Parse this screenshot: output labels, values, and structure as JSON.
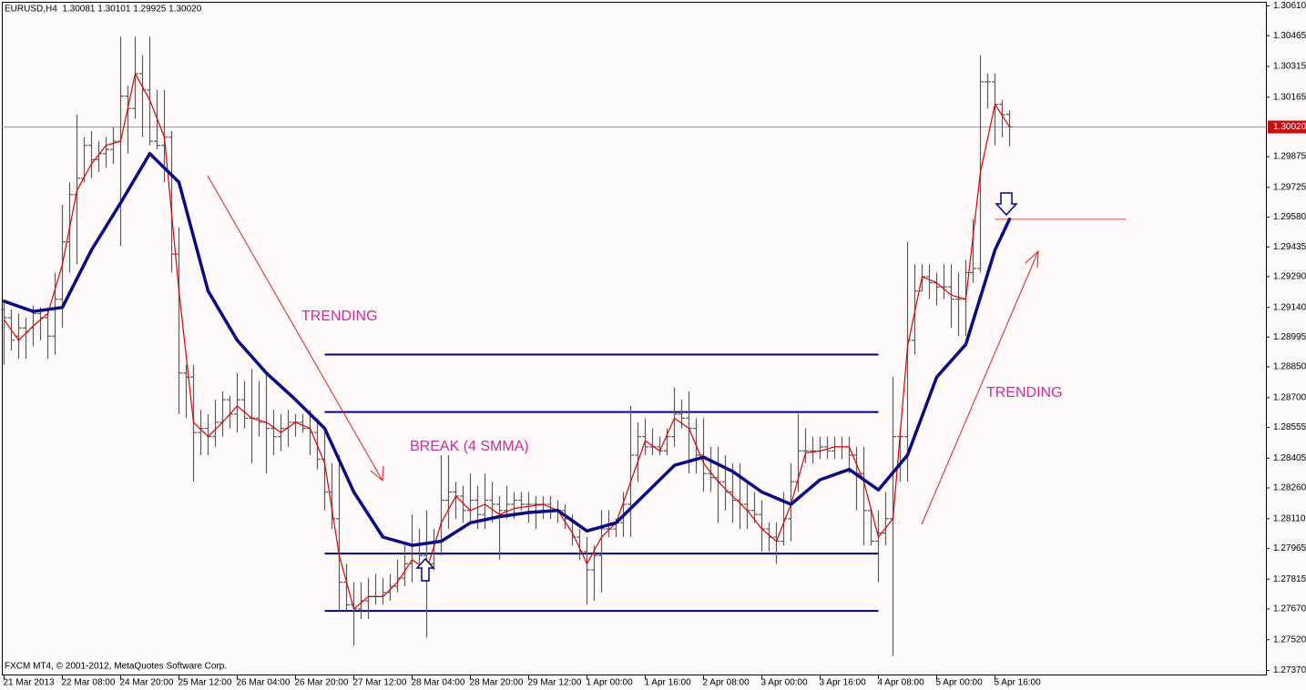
{
  "footer": "FXCM MT4, © 2001-2012, MetaQuotes Software Corp.",
  "chart_data": {
    "type": "ohlc",
    "title": "EURUSD,H4  1.30081 1.30101 1.29925 1.30020",
    "categories": [
      "21 Mar 2013",
      null,
      null,
      null,
      null,
      null,
      null,
      null,
      "22 Mar 08:00",
      null,
      null,
      null,
      null,
      null,
      null,
      null,
      "24 Mar 20:00",
      null,
      null,
      null,
      null,
      null,
      null,
      null,
      "25 Mar 12:00",
      null,
      null,
      null,
      null,
      null,
      null,
      null,
      "26 Mar 04:00",
      null,
      null,
      null,
      null,
      null,
      null,
      null,
      "26 Mar 20:00",
      null,
      null,
      null,
      null,
      null,
      null,
      null,
      "27 Mar 12:00",
      null,
      null,
      null,
      null,
      null,
      null,
      null,
      "28 Mar 04:00",
      null,
      null,
      null,
      null,
      null,
      null,
      null,
      "28 Mar 20:00",
      null,
      null,
      null,
      null,
      null,
      null,
      null,
      "29 Mar 12:00",
      null,
      null,
      null,
      null,
      null,
      null,
      null,
      "1 Apr 00:00",
      null,
      null,
      null,
      null,
      null,
      null,
      null,
      "1 Apr 16:00",
      null,
      null,
      null,
      null,
      null,
      null,
      null,
      "2 Apr 08:00",
      null,
      null,
      null,
      null,
      null,
      null,
      null,
      "3 Apr 00:00",
      null,
      null,
      null,
      null,
      null,
      null,
      null,
      "3 Apr 16:00",
      null,
      null,
      null,
      null,
      null,
      null,
      null,
      "4 Apr 08:00",
      null,
      null,
      null,
      null,
      null,
      null,
      null,
      "5 Apr 00:00",
      null,
      null,
      null,
      null,
      null,
      null,
      null,
      "5 Apr 16:00",
      null,
      null
    ],
    "ohlc": [
      [
        1.2913,
        1.2918,
        1.2886,
        1.2909
      ],
      [
        1.2909,
        1.2913,
        1.2893,
        1.2898
      ],
      [
        1.29,
        1.2911,
        1.2889,
        1.2904
      ],
      [
        1.2904,
        1.2909,
        1.2889,
        1.2902
      ],
      [
        1.2904,
        1.2915,
        1.2895,
        1.2911
      ],
      [
        1.2911,
        1.2914,
        1.2898,
        1.2909
      ],
      [
        1.2909,
        1.2913,
        1.2889,
        1.29
      ],
      [
        1.29,
        1.2931,
        1.2891,
        1.2918
      ],
      [
        1.2918,
        1.2964,
        1.2904,
        1.2946
      ],
      [
        1.2946,
        1.2975,
        1.2931,
        1.2969
      ],
      [
        1.2969,
        1.3008,
        1.2935,
        1.2977
      ],
      [
        1.2977,
        1.2997,
        1.2975,
        1.2993
      ],
      [
        1.2993,
        1.3,
        1.2977,
        1.2986
      ],
      [
        1.2986,
        1.2995,
        1.298,
        1.2989
      ],
      [
        1.2989,
        1.2997,
        1.2982,
        1.2991
      ],
      [
        1.2991,
        1.3002,
        1.2984,
        1.2995
      ],
      [
        1.2995,
        1.3046,
        1.2944,
        1.3017
      ],
      [
        1.3017,
        1.3022,
        1.2989,
        1.3011
      ],
      [
        1.3011,
        1.3046,
        1.3006,
        1.3028
      ],
      [
        1.3028,
        1.3037,
        1.2997,
        1.302
      ],
      [
        1.302,
        1.3046,
        1.2993,
        1.2995
      ],
      [
        1.2995,
        1.302,
        1.2991,
        1.2993
      ],
      [
        1.2993,
        1.302,
        1.2975,
        1.2997
      ],
      [
        1.2997,
        1.3,
        1.2931,
        1.294
      ],
      [
        1.294,
        1.2953,
        1.2862,
        1.2882
      ],
      [
        1.2882,
        1.2886,
        1.286,
        1.288
      ],
      [
        1.288,
        1.2886,
        1.2829,
        1.2853
      ],
      [
        1.2853,
        1.2864,
        1.2842,
        1.2855
      ],
      [
        1.2855,
        1.2862,
        1.2842,
        1.2851
      ],
      [
        1.2851,
        1.2869,
        1.2846,
        1.2858
      ],
      [
        1.2858,
        1.2873,
        1.2851,
        1.2869
      ],
      [
        1.2869,
        1.2871,
        1.2855,
        1.2862
      ],
      [
        1.2862,
        1.2882,
        1.2853,
        1.2869
      ],
      [
        1.2869,
        1.2878,
        1.2855,
        1.286
      ],
      [
        1.286,
        1.2884,
        1.2838,
        1.286
      ],
      [
        1.286,
        1.2878,
        1.2851,
        1.2858
      ],
      [
        1.2858,
        1.2882,
        1.2833,
        1.2855
      ],
      [
        1.2855,
        1.2864,
        1.2842,
        1.2851
      ],
      [
        1.2851,
        1.2862,
        1.2844,
        1.2855
      ],
      [
        1.2855,
        1.2864,
        1.2846,
        1.2858
      ],
      [
        1.2858,
        1.2862,
        1.2851,
        1.2858
      ],
      [
        1.2858,
        1.2862,
        1.2853,
        1.2855
      ],
      [
        1.2855,
        1.2864,
        1.2842,
        1.2853
      ],
      [
        1.2853,
        1.286,
        1.2835,
        1.284
      ],
      [
        1.284,
        1.2855,
        1.2815,
        1.2824
      ],
      [
        1.2824,
        1.2838,
        1.2806,
        1.2811
      ],
      [
        1.2811,
        1.2842,
        1.2766,
        1.278
      ],
      [
        1.278,
        1.2789,
        1.2766,
        1.2769
      ],
      [
        1.2769,
        1.278,
        1.2749,
        1.2767
      ],
      [
        1.2767,
        1.278,
        1.2762,
        1.2771
      ],
      [
        1.2771,
        1.2782,
        1.2762,
        1.2773
      ],
      [
        1.2773,
        1.2784,
        1.2769,
        1.2773
      ],
      [
        1.2773,
        1.2782,
        1.2769,
        1.2775
      ],
      [
        1.2775,
        1.2784,
        1.2771,
        1.2778
      ],
      [
        1.2778,
        1.2791,
        1.2775,
        1.2782
      ],
      [
        1.2782,
        1.2798,
        1.2778,
        1.2789
      ],
      [
        1.2789,
        1.2813,
        1.278,
        1.2798
      ],
      [
        1.2798,
        1.2806,
        1.2789,
        1.2793
      ],
      [
        1.2793,
        1.2815,
        1.2753,
        1.2789
      ],
      [
        1.2789,
        1.2806,
        1.2786,
        1.28
      ],
      [
        1.28,
        1.2842,
        1.2793,
        1.282
      ],
      [
        1.282,
        1.2842,
        1.2806,
        1.2824
      ],
      [
        1.2824,
        1.2829,
        1.2811,
        1.2822
      ],
      [
        1.2822,
        1.2827,
        1.2809,
        1.2815
      ],
      [
        1.2815,
        1.2833,
        1.2809,
        1.282
      ],
      [
        1.282,
        1.2827,
        1.2806,
        1.2813
      ],
      [
        1.2813,
        1.2833,
        1.2806,
        1.282
      ],
      [
        1.282,
        1.2829,
        1.2809,
        1.2818
      ],
      [
        1.2818,
        1.2822,
        1.2791,
        1.2815
      ],
      [
        1.2815,
        1.2827,
        1.2811,
        1.2818
      ],
      [
        1.2818,
        1.2824,
        1.2811,
        1.282
      ],
      [
        1.282,
        1.2824,
        1.2815,
        1.2818
      ],
      [
        1.2818,
        1.2824,
        1.2809,
        1.2818
      ],
      [
        1.2818,
        1.2822,
        1.2806,
        1.2818
      ],
      [
        1.2818,
        1.2822,
        1.2811,
        1.2818
      ],
      [
        1.2818,
        1.2822,
        1.2811,
        1.2815
      ],
      [
        1.2815,
        1.282,
        1.2809,
        1.2815
      ],
      [
        1.2815,
        1.2818,
        1.2806,
        1.2811
      ],
      [
        1.2811,
        1.2813,
        1.2798,
        1.2802
      ],
      [
        1.2802,
        1.2806,
        1.2791,
        1.2795
      ],
      [
        1.2795,
        1.2802,
        1.2769,
        1.2786
      ],
      [
        1.2786,
        1.2798,
        1.2771,
        1.2793
      ],
      [
        1.2793,
        1.2815,
        1.2775,
        1.2806
      ],
      [
        1.2806,
        1.2815,
        1.2802,
        1.2806
      ],
      [
        1.2806,
        1.2811,
        1.2802,
        1.2809
      ],
      [
        1.2809,
        1.2824,
        1.2802,
        1.2818
      ],
      [
        1.2818,
        1.2866,
        1.2802,
        1.2842
      ],
      [
        1.2842,
        1.2858,
        1.2829,
        1.2851
      ],
      [
        1.2851,
        1.286,
        1.2842,
        1.2846
      ],
      [
        1.2846,
        1.2855,
        1.2842,
        1.2846
      ],
      [
        1.2846,
        1.2851,
        1.2842,
        1.2844
      ],
      [
        1.2844,
        1.2855,
        1.2842,
        1.2851
      ],
      [
        1.2851,
        1.2875,
        1.2846,
        1.2862
      ],
      [
        1.2862,
        1.2869,
        1.2855,
        1.286
      ],
      [
        1.286,
        1.2873,
        1.2833,
        1.2855
      ],
      [
        1.2855,
        1.286,
        1.2833,
        1.2842
      ],
      [
        1.2842,
        1.286,
        1.2824,
        1.2833
      ],
      [
        1.2833,
        1.2846,
        1.2824,
        1.2831
      ],
      [
        1.2831,
        1.2846,
        1.2809,
        1.2829
      ],
      [
        1.2829,
        1.2842,
        1.2815,
        1.2824
      ],
      [
        1.2824,
        1.2838,
        1.2809,
        1.282
      ],
      [
        1.282,
        1.2838,
        1.2806,
        1.2818
      ],
      [
        1.2818,
        1.2829,
        1.2806,
        1.2815
      ],
      [
        1.2815,
        1.2824,
        1.2809,
        1.2813
      ],
      [
        1.2813,
        1.282,
        1.2795,
        1.2806
      ],
      [
        1.2806,
        1.2809,
        1.2795,
        1.2802
      ],
      [
        1.2802,
        1.2809,
        1.2789,
        1.28
      ],
      [
        1.28,
        1.2824,
        1.2798,
        1.2811
      ],
      [
        1.2811,
        1.2838,
        1.28,
        1.2829
      ],
      [
        1.2829,
        1.2862,
        1.2824,
        1.2844
      ],
      [
        1.2844,
        1.2855,
        1.2838,
        1.2844
      ],
      [
        1.2844,
        1.2851,
        1.2838,
        1.2844
      ],
      [
        1.2844,
        1.2851,
        1.284,
        1.2846
      ],
      [
        1.2846,
        1.2851,
        1.284,
        1.2844
      ],
      [
        1.2844,
        1.2851,
        1.284,
        1.2846
      ],
      [
        1.2846,
        1.2851,
        1.284,
        1.2846
      ],
      [
        1.2846,
        1.2851,
        1.2833,
        1.2842
      ],
      [
        1.2842,
        1.2846,
        1.2815,
        1.2833
      ],
      [
        1.2833,
        1.2846,
        1.2798,
        1.2815
      ],
      [
        1.2815,
        1.2815,
        1.2798,
        1.28
      ],
      [
        1.28,
        1.2815,
        1.278,
        1.2804
      ],
      [
        1.2804,
        1.2824,
        1.2798,
        1.2811
      ],
      [
        1.2811,
        1.288,
        1.2744,
        1.2851
      ],
      [
        1.2851,
        1.2855,
        1.2829,
        1.2851
      ],
      [
        1.2851,
        1.2946,
        1.2829,
        1.2898
      ],
      [
        1.2898,
        1.2935,
        1.2891,
        1.2922
      ],
      [
        1.2922,
        1.2935,
        1.2922,
        1.2929
      ],
      [
        1.2929,
        1.2935,
        1.2918,
        1.2926
      ],
      [
        1.2926,
        1.2931,
        1.2915,
        1.2924
      ],
      [
        1.2924,
        1.2935,
        1.2918,
        1.2924
      ],
      [
        1.2924,
        1.2935,
        1.2904,
        1.2918
      ],
      [
        1.2918,
        1.2931,
        1.29,
        1.2918
      ],
      [
        1.2918,
        1.2937,
        1.29,
        1.2931
      ],
      [
        1.2931,
        1.2957,
        1.2926,
        1.2933
      ],
      [
        1.2933,
        1.3037,
        1.2931,
        1.3024
      ],
      [
        1.3024,
        1.3028,
        1.3011,
        1.3024
      ],
      [
        1.3024,
        1.3028,
        1.2993,
        1.3013
      ],
      [
        1.3013,
        1.3015,
        1.2997,
        1.3008
      ],
      [
        1.30081,
        1.30101,
        1.29925,
        1.3002
      ]
    ],
    "bar_color": "#5c5c5c",
    "lines": [
      {
        "color": "#e00000",
        "x": [
          0,
          2,
          4,
          6,
          8,
          10,
          12,
          14,
          16,
          18,
          20,
          22,
          24,
          26,
          28,
          30,
          32,
          34,
          36,
          38,
          40,
          42,
          44,
          46,
          48,
          50,
          52,
          54,
          56,
          58,
          60,
          62,
          64,
          66,
          68,
          70,
          72,
          74,
          76,
          78,
          80,
          82,
          84,
          86,
          88,
          90,
          92,
          94,
          96,
          98,
          100,
          102,
          104,
          106,
          108,
          110,
          112,
          114,
          116,
          118,
          120,
          122,
          124,
          126,
          128,
          130,
          132,
          134,
          136,
          138
        ],
        "values": [
          1.2908,
          1.2898,
          1.2905,
          1.2911,
          1.2935,
          1.2971,
          1.2984,
          1.2993,
          1.2995,
          1.3028,
          1.3015,
          1.2997,
          1.2922,
          1.2858,
          1.2851,
          1.2858,
          1.2866,
          1.286,
          1.2858,
          1.2853,
          1.2858,
          1.2855,
          1.2838,
          1.2793,
          1.2767,
          1.2773,
          1.2773,
          1.278,
          1.2791,
          1.2786,
          1.2809,
          1.2822,
          1.2815,
          1.2818,
          1.2813,
          1.2816,
          1.2817,
          1.2818,
          1.2815,
          1.2804,
          1.2789,
          1.2802,
          1.2809,
          1.2829,
          1.2849,
          1.2844,
          1.286,
          1.2855,
          1.2838,
          1.2829,
          1.2822,
          1.2815,
          1.2806,
          1.28,
          1.2818,
          1.2843,
          1.2844,
          1.2846,
          1.2846,
          1.2829,
          1.2802,
          1.2811,
          1.2895,
          1.2929,
          1.2926,
          1.292,
          1.2918,
          1.298,
          1.3013,
          1.3002
        ]
      },
      {
        "color": "#0a0a82",
        "x": [
          0,
          4,
          8,
          12,
          16,
          20,
          24,
          28,
          32,
          36,
          40,
          44,
          48,
          52,
          56,
          60,
          64,
          68,
          72,
          76,
          80,
          84,
          88,
          92,
          96,
          100,
          104,
          108,
          112,
          116,
          120,
          124,
          128,
          132,
          136,
          138
        ],
        "values": [
          1.2917,
          1.2912,
          1.2914,
          1.2942,
          1.2965,
          1.2989,
          1.2975,
          1.2922,
          1.2898,
          1.2882,
          1.2869,
          1.2855,
          1.2824,
          1.2802,
          1.2798,
          1.28,
          1.2809,
          1.2812,
          1.2814,
          1.2815,
          1.2805,
          1.2809,
          1.2823,
          1.2837,
          1.2841,
          1.2834,
          1.2824,
          1.2818,
          1.283,
          1.2835,
          1.2825,
          1.2842,
          1.288,
          1.2896,
          1.2942,
          1.2957
        ]
      }
    ],
    "levels": [
      {
        "value": 1.2891,
        "from": 44,
        "to": 120,
        "color": "#00007f"
      },
      {
        "value": 1.2863,
        "from": 44,
        "to": 120,
        "color": "#00007f"
      },
      {
        "value": 1.2794,
        "from": 44,
        "to": 120,
        "color": "#00007f"
      },
      {
        "value": 1.2766,
        "from": 44,
        "to": 120,
        "color": "#00007f"
      },
      {
        "value": 1.2957,
        "from": 136,
        "to": 154,
        "color": "#e04848"
      }
    ],
    "current_price": {
      "value": 1.3002,
      "label": "1.30020"
    },
    "annotations": [
      "TRENDING",
      "BREAK (4 SMMA)",
      "TRENDING"
    ],
    "ylim": [
      1.2735,
      1.3063
    ],
    "yticks": [
      {
        "value": 1.3061,
        "label": "1.30610"
      },
      1.30465,
      1.30315,
      1.30165,
      1.29875,
      1.29725,
      {
        "value": 1.2958,
        "label": "1.29580"
      },
      1.29435,
      {
        "value": 1.2929,
        "label": "1.29290"
      },
      {
        "value": 1.2914,
        "label": "1.29140"
      },
      1.28995,
      {
        "value": 1.2885,
        "label": "1.28850"
      },
      {
        "value": 1.287,
        "label": "1.28700"
      },
      1.28555,
      1.28405,
      {
        "value": 1.2826,
        "label": "1.28260"
      },
      {
        "value": 1.2811,
        "label": "1.28110"
      },
      1.27965,
      1.27815,
      {
        "value": 1.2767,
        "label": "1.27670"
      },
      {
        "value": 1.2752,
        "label": "1.27520"
      },
      {
        "value": 1.2737,
        "label": "1.27370"
      }
    ]
  }
}
